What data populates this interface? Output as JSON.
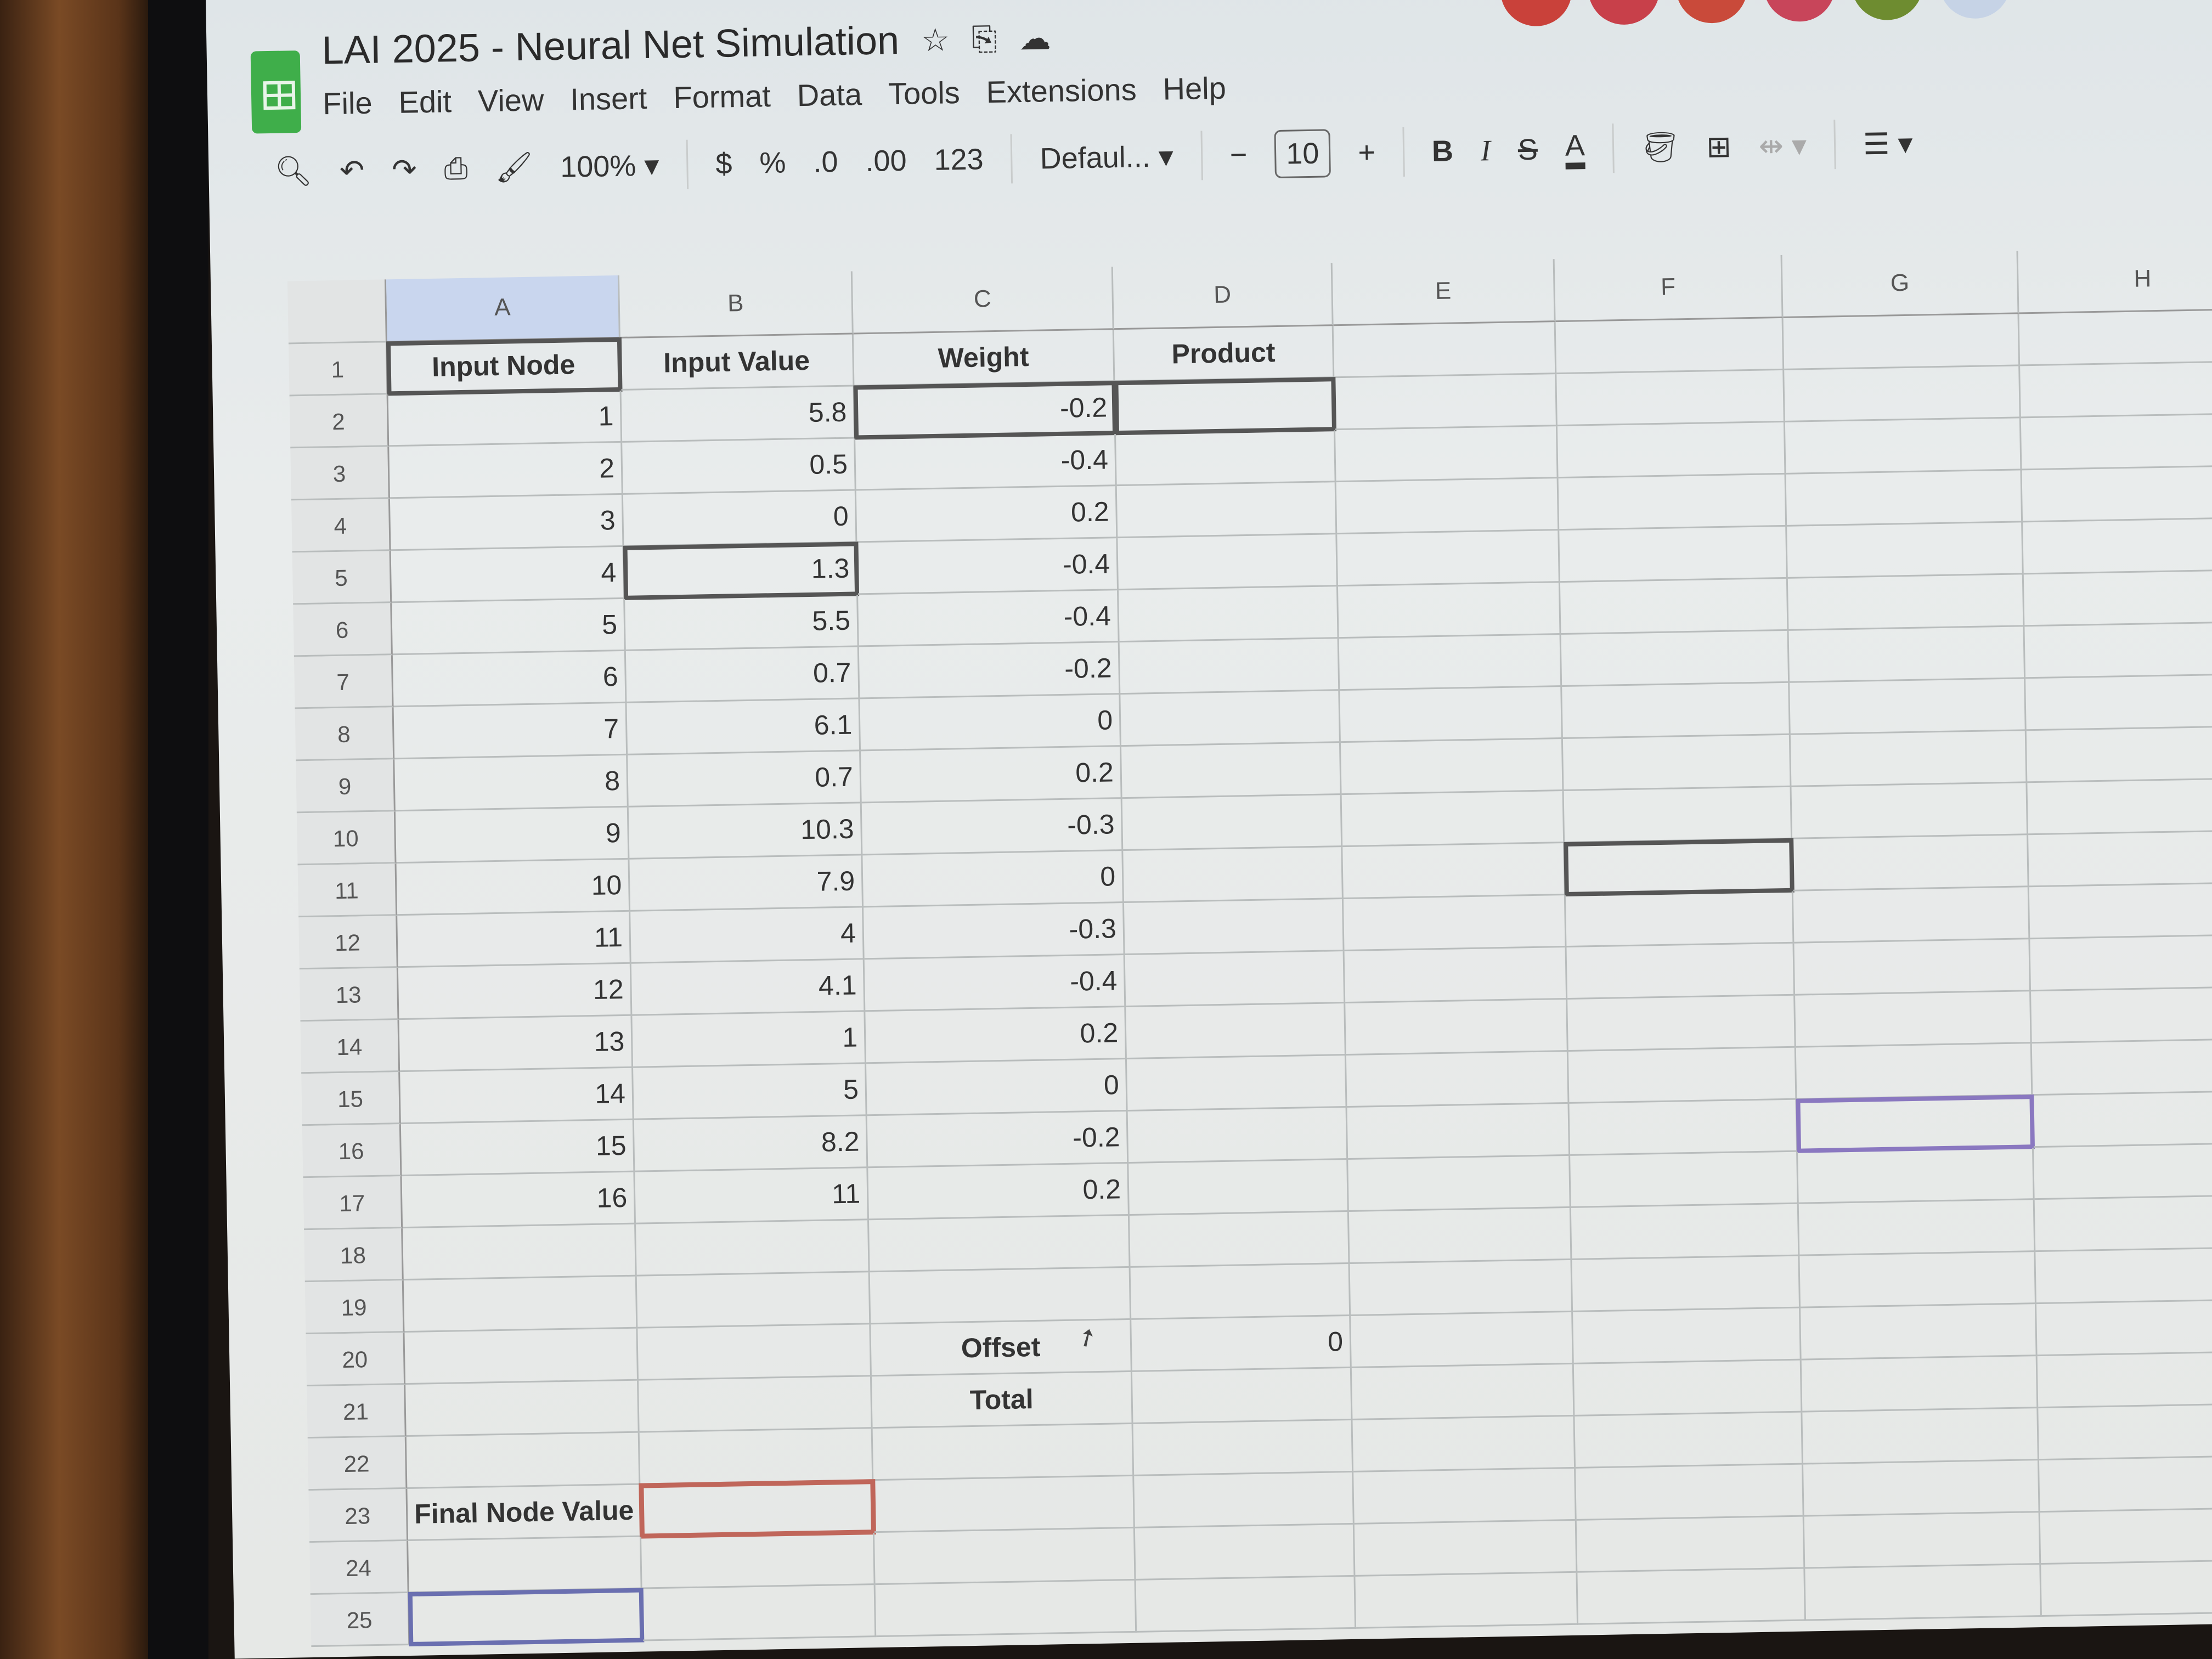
{
  "document": {
    "title": "LAI 2025 - Neural Net Simulation",
    "icons": [
      "star-icon",
      "move-to-folder-icon",
      "cloud-saved-icon"
    ]
  },
  "menu": [
    "File",
    "Edit",
    "View",
    "Insert",
    "Format",
    "Data",
    "Tools",
    "Extensions",
    "Help"
  ],
  "toolbar": {
    "zoom": "100%",
    "currency": "$",
    "percent": "%",
    "decrease_decimal": ".0",
    "increase_decimal": ".00",
    "number_format": "123",
    "font": "Defaul...",
    "font_size": "10",
    "minus": "−",
    "plus": "+",
    "bold": "B",
    "italic": "I",
    "strikethrough": "S",
    "text_color": "A"
  },
  "collaborator_colors": [
    "#c9413a",
    "#c8404a",
    "#c94a3a",
    "#c8455a",
    "#6e8c30",
    "#c6d3e6"
  ],
  "columns": [
    "A",
    "B",
    "C",
    "D",
    "E",
    "F",
    "G",
    "H"
  ],
  "rows": [
    "1",
    "2",
    "3",
    "4",
    "5",
    "6",
    "7",
    "8",
    "9",
    "10",
    "11",
    "12",
    "13",
    "14",
    "15",
    "16",
    "17",
    "18",
    "19",
    "20",
    "21",
    "22",
    "23",
    "24",
    "25"
  ],
  "table": {
    "headers": [
      "Input Node",
      "Input Value",
      "Weight",
      "Product"
    ],
    "data": [
      [
        "1",
        "5.8",
        "-0.2",
        ""
      ],
      [
        "2",
        "0.5",
        "-0.4",
        ""
      ],
      [
        "3",
        "0",
        "0.2",
        ""
      ],
      [
        "4",
        "1.3",
        "-0.4",
        ""
      ],
      [
        "5",
        "5.5",
        "-0.4",
        ""
      ],
      [
        "6",
        "0.7",
        "-0.2",
        ""
      ],
      [
        "7",
        "6.1",
        "0",
        ""
      ],
      [
        "8",
        "0.7",
        "0.2",
        ""
      ],
      [
        "9",
        "10.3",
        "-0.3",
        ""
      ],
      [
        "10",
        "7.9",
        "0",
        ""
      ],
      [
        "11",
        "4",
        "-0.3",
        ""
      ],
      [
        "12",
        "4.1",
        "-0.4",
        ""
      ],
      [
        "13",
        "1",
        "0.2",
        ""
      ],
      [
        "14",
        "5",
        "0",
        ""
      ],
      [
        "15",
        "8.2",
        "-0.2",
        ""
      ],
      [
        "16",
        "11",
        "0.2",
        ""
      ]
    ]
  },
  "summary": {
    "offset_label": "Offset",
    "offset_value": "0",
    "total_label": "Total",
    "final_label": "Final Node Value"
  }
}
